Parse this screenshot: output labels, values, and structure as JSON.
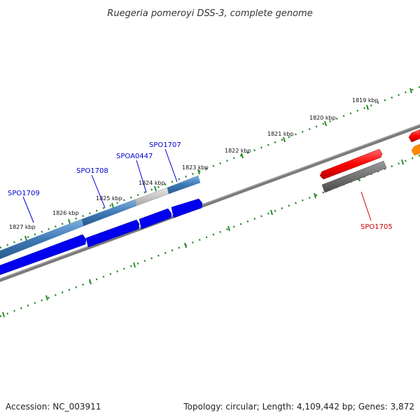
{
  "title": "Ruegeria pomeroyi DSS-3, complete genome",
  "footer": {
    "accession": "Accession: NC_003911",
    "summary": "Topology: circular; Length: 4,109,442 bp; Genes: 3,872"
  },
  "ticks": [
    {
      "label": "1819 kbp"
    },
    {
      "label": "1820 kbp"
    },
    {
      "label": "1821 kbp"
    },
    {
      "label": "1822 kbp"
    },
    {
      "label": "1823 kbp"
    },
    {
      "label": "1824 kbp"
    },
    {
      "label": "1825 kbp"
    },
    {
      "label": "1826 kbp"
    },
    {
      "label": "1827 kbp"
    }
  ],
  "genes": [
    {
      "label": "SPO1709",
      "color": "#0000cc"
    },
    {
      "label": "SPO1708",
      "color": "#0000cc"
    },
    {
      "label": "SPOA0447",
      "color": "#0000cc"
    },
    {
      "label": "SPO1707",
      "color": "#0000cc"
    },
    {
      "label": "SPO1705",
      "color": "#cc0000"
    }
  ],
  "colors": {
    "backbone": "#777777",
    "forward_cds": "#0000ff",
    "cog_track": "#3c78b4",
    "highlight_cds": "#ff0000",
    "gray_feature": "#555555",
    "orange_feature": "#ff8800",
    "tick": "#2a8a2a"
  }
}
